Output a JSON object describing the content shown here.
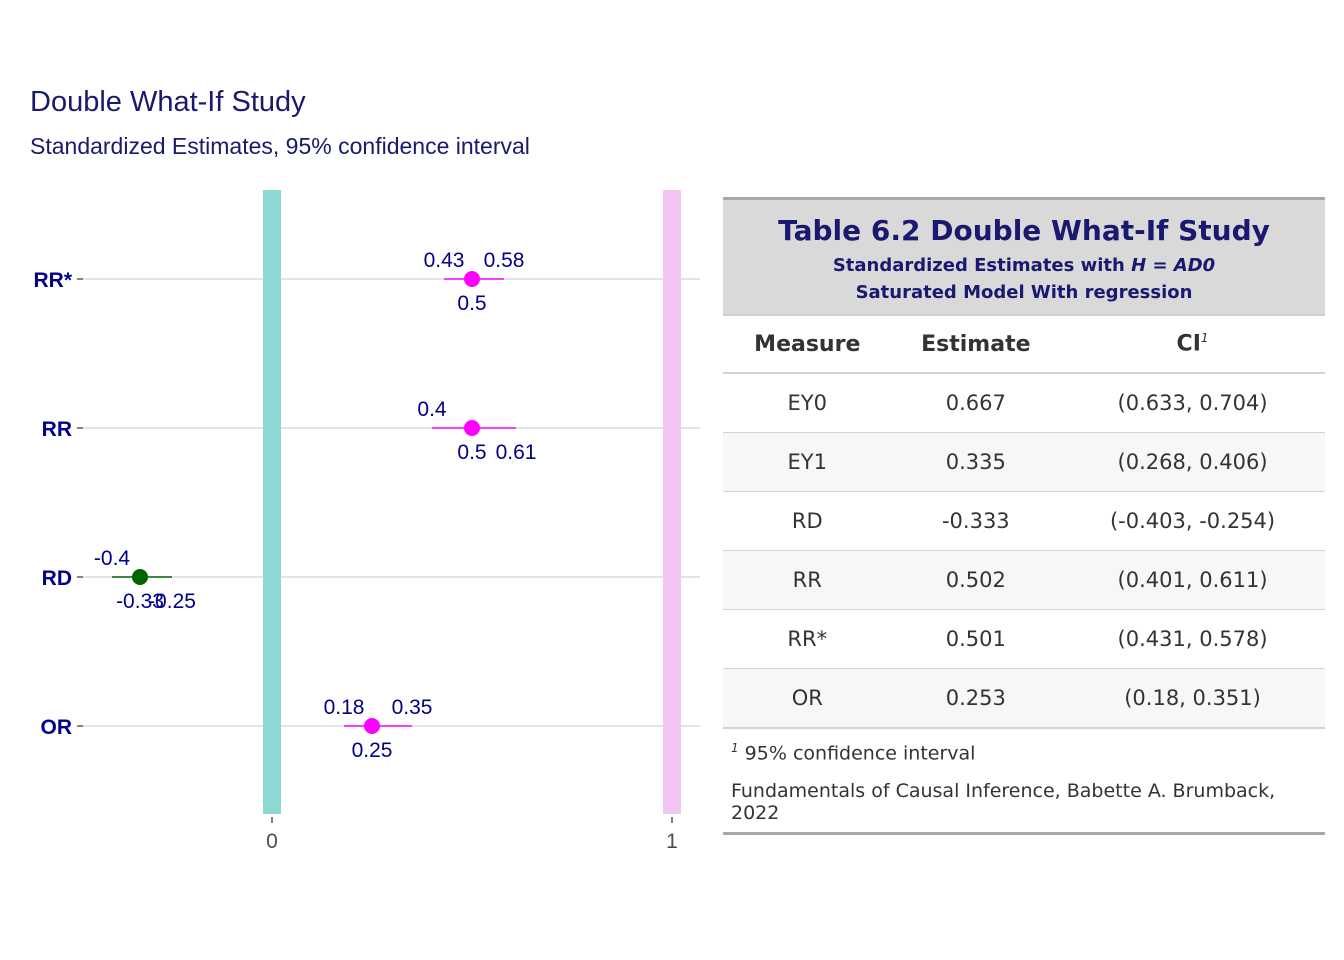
{
  "title": "Double What-If Study",
  "subtitle": "Standardized Estimates, 95% confidence interval",
  "colors": {
    "title": "#191970",
    "point": "#ff00ff",
    "rd_point": "#006400",
    "ref0": "#8dd8d2",
    "ref1": "#f2c4f2",
    "grid": "#d3d3d3"
  },
  "chart_data": {
    "type": "scatter",
    "title": "Double What-If Study",
    "subtitle": "Standardized Estimates, 95% confidence interval",
    "categories": [
      "OR",
      "RD",
      "RR",
      "RR*"
    ],
    "xticks": [
      "0",
      "1"
    ],
    "xlim": [
      -0.33,
      1.02
    ],
    "reference_lines": [
      0,
      1
    ],
    "grid": true,
    "points": [
      {
        "measure": "OR",
        "est": 0.25,
        "lo": 0.18,
        "hi": 0.35,
        "est_label": "0.25",
        "lo_label": "0.18",
        "hi_label": "0.35",
        "color": "#ff00ff"
      },
      {
        "measure": "RD",
        "est": -0.33,
        "lo": -0.4,
        "hi": -0.25,
        "est_label": "-0.33",
        "lo_label": "-0.4",
        "hi_label": "-0.25",
        "color": "#006400"
      },
      {
        "measure": "RR",
        "est": 0.5,
        "lo": 0.4,
        "hi": 0.61,
        "est_label": "0.5",
        "lo_label": "0.4",
        "hi_label": "0.61",
        "color": "#ff00ff"
      },
      {
        "measure": "RR*",
        "est": 0.5,
        "lo": 0.43,
        "hi": 0.58,
        "est_label": "0.5",
        "lo_label": "0.43",
        "hi_label": "0.58",
        "color": "#ff00ff"
      }
    ]
  },
  "table": {
    "title": "Table 6.2 Double What-If Study",
    "subtitle_pre": "Standardized Estimates with ",
    "subtitle_formula": "H = AD0",
    "subtitle2": "Saturated Model With regression",
    "columns": [
      "Measure",
      "Estimate",
      "CI"
    ],
    "ci_footnote_mark": "1",
    "rows": [
      [
        "EY0",
        "0.667",
        "(0.633, 0.704)"
      ],
      [
        "EY1",
        "0.335",
        "(0.268, 0.406)"
      ],
      [
        "RD",
        "-0.333",
        "(-0.403, -0.254)"
      ],
      [
        "RR",
        "0.502",
        "(0.401, 0.611)"
      ],
      [
        "RR*",
        "0.501",
        "(0.431, 0.578)"
      ],
      [
        "OR",
        "0.253",
        "(0.18, 0.351)"
      ]
    ],
    "footnote_mark": "1",
    "footnote": " 95% confidence interval",
    "source": "Fundamentals of Causal Inference, Babette A. Brumback, 2022"
  }
}
